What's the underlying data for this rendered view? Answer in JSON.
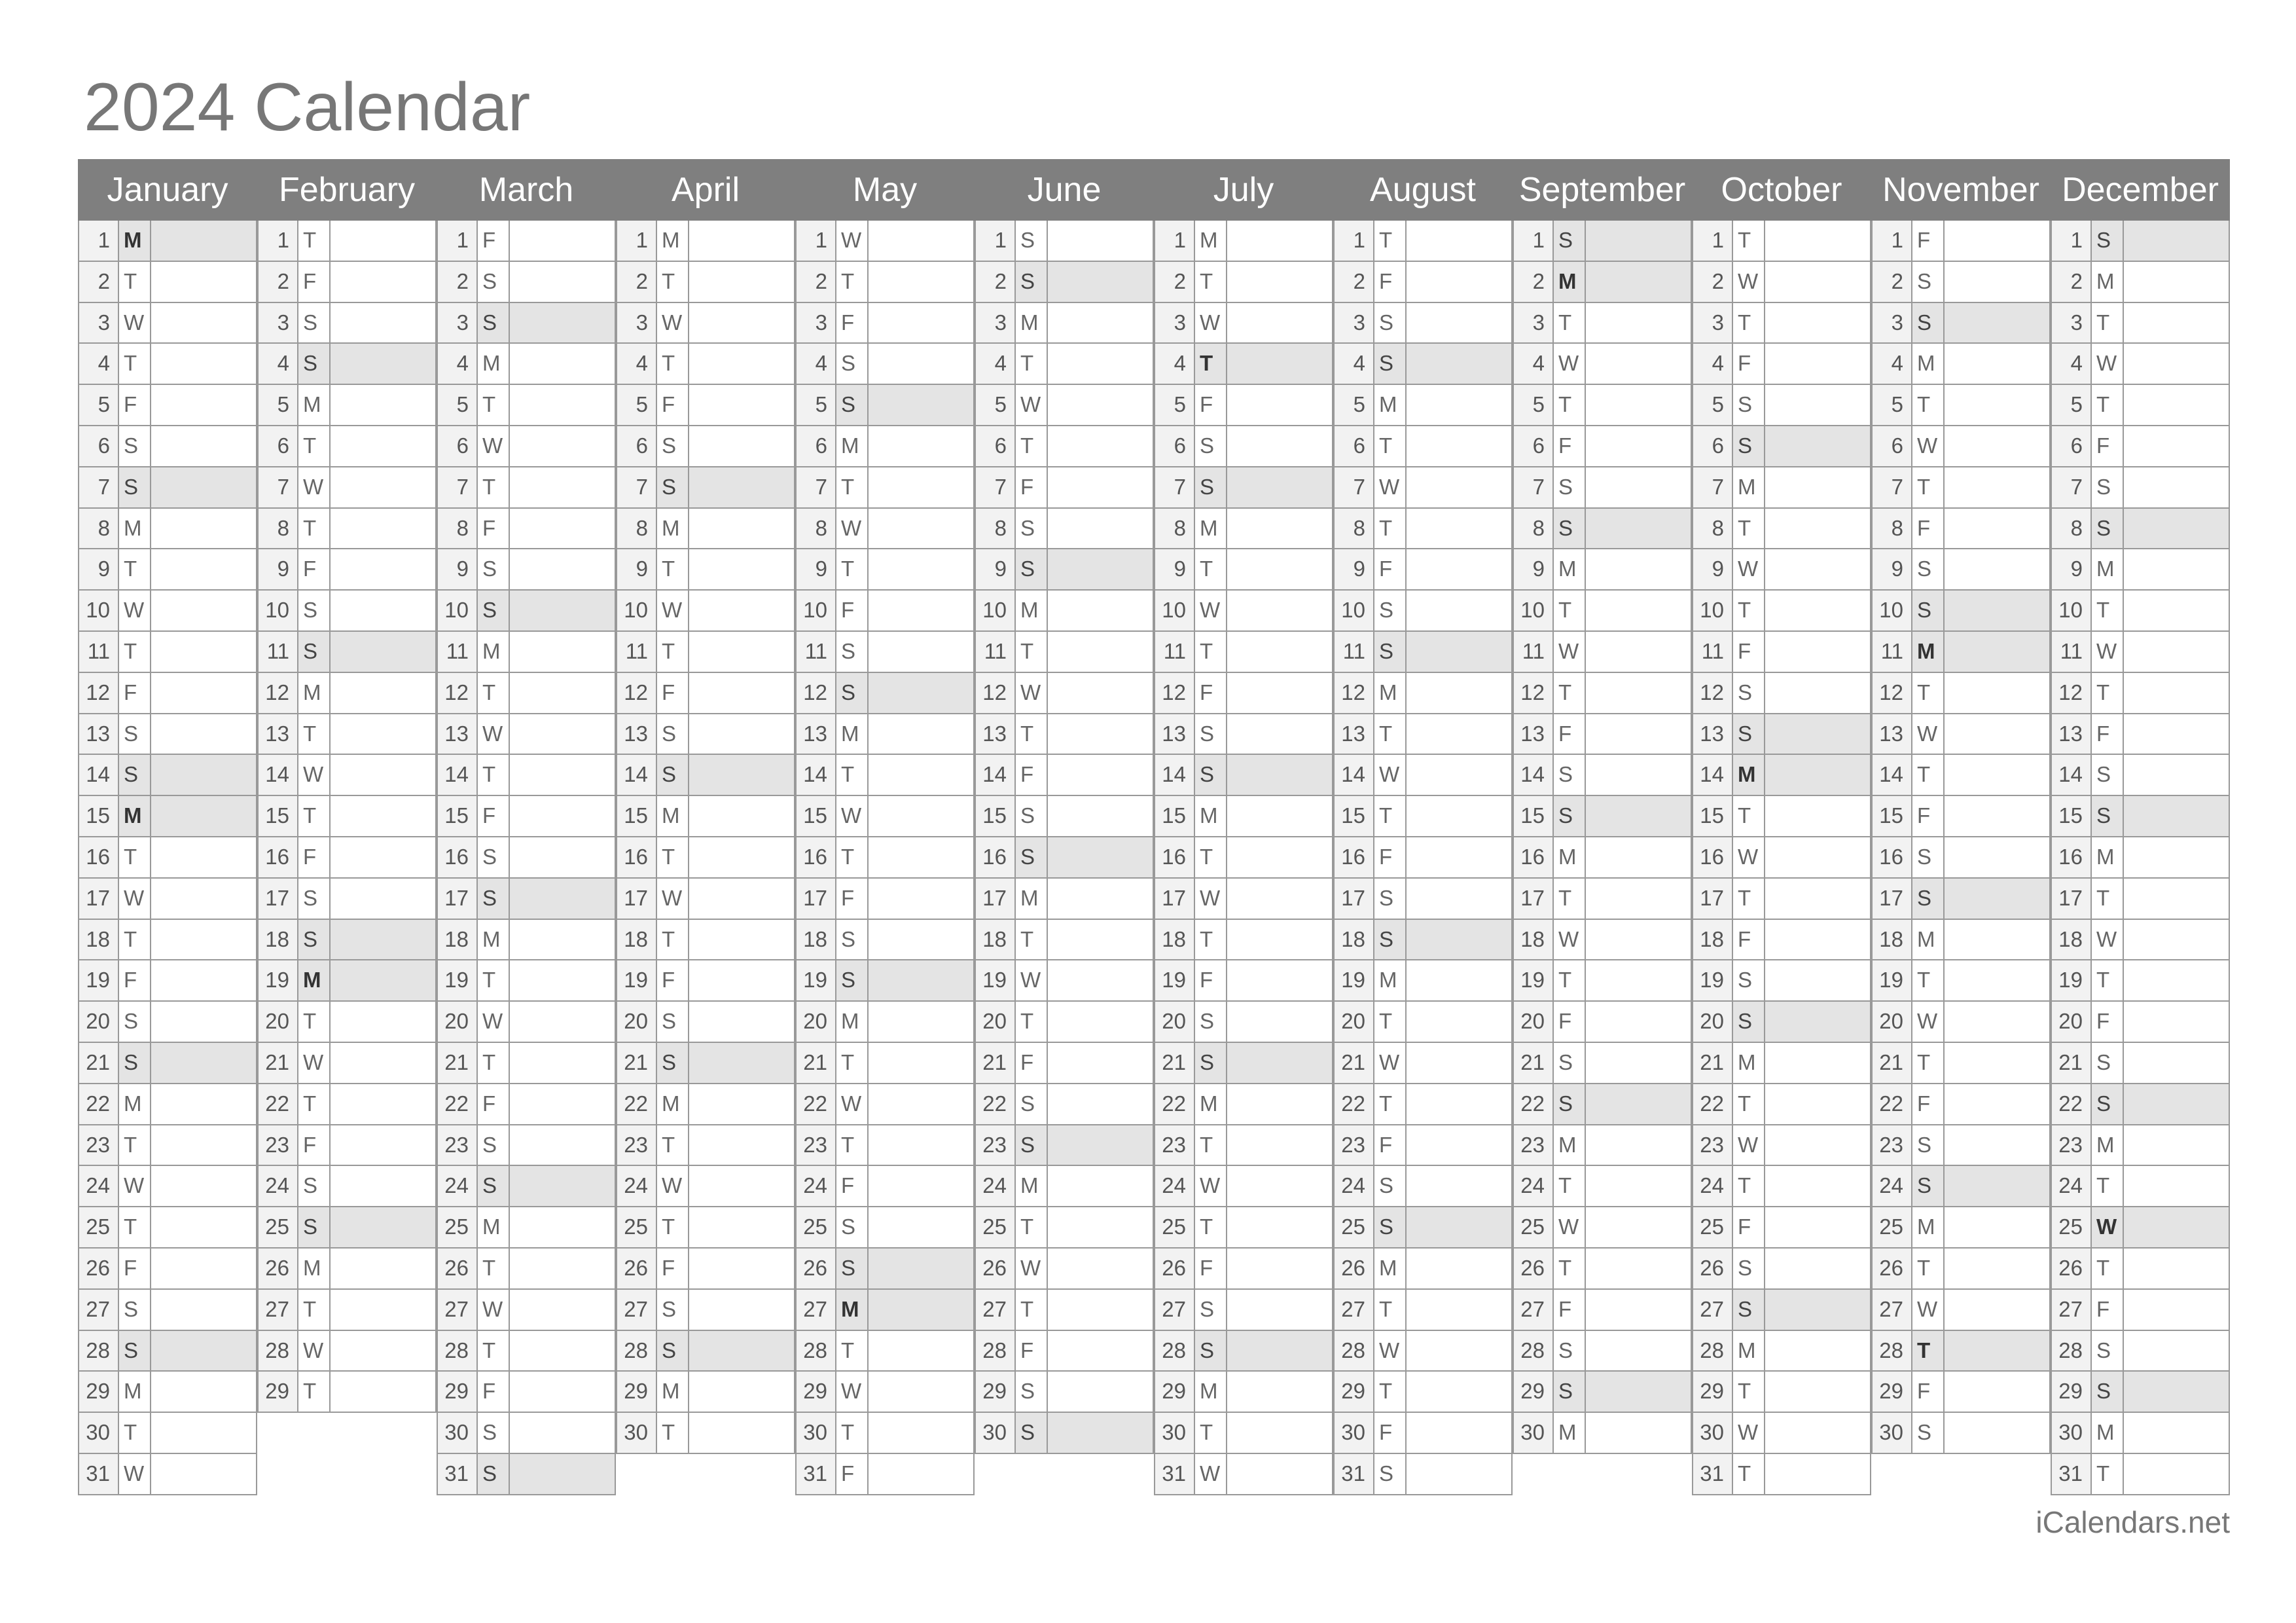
{
  "title": "2024 Calendar",
  "footer": "iCalendars.net",
  "weekday_letters": [
    "M",
    "T",
    "W",
    "T",
    "F",
    "S",
    "S"
  ],
  "months": [
    {
      "name": "January",
      "days": 31,
      "start_weekday": "Monday"
    },
    {
      "name": "February",
      "days": 29,
      "start_weekday": "Thursday"
    },
    {
      "name": "March",
      "days": 31,
      "start_weekday": "Friday"
    },
    {
      "name": "April",
      "days": 30,
      "start_weekday": "Monday"
    },
    {
      "name": "May",
      "days": 31,
      "start_weekday": "Wednesday"
    },
    {
      "name": "June",
      "days": 30,
      "start_weekday": "Saturday"
    },
    {
      "name": "July",
      "days": 31,
      "start_weekday": "Monday"
    },
    {
      "name": "August",
      "days": 31,
      "start_weekday": "Thursday"
    },
    {
      "name": "September",
      "days": 30,
      "start_weekday": "Sunday"
    },
    {
      "name": "October",
      "days": 31,
      "start_weekday": "Tuesday"
    },
    {
      "name": "November",
      "days": 30,
      "start_weekday": "Friday"
    },
    {
      "name": "December",
      "days": 31,
      "start_weekday": "Sunday"
    }
  ],
  "shaded_weekday": "Sunday",
  "holidays": [
    [
      1,
      1
    ],
    [
      1,
      15
    ],
    [
      2,
      19
    ],
    [
      5,
      27
    ],
    [
      7,
      4
    ],
    [
      9,
      2
    ],
    [
      10,
      14
    ],
    [
      11,
      11
    ],
    [
      11,
      28
    ],
    [
      12,
      25
    ]
  ],
  "colors": {
    "header_bg": "#7f7f7f",
    "shade": "#e4e4e4",
    "day_number_bg": "#f2f2f2",
    "border": "#999999"
  }
}
